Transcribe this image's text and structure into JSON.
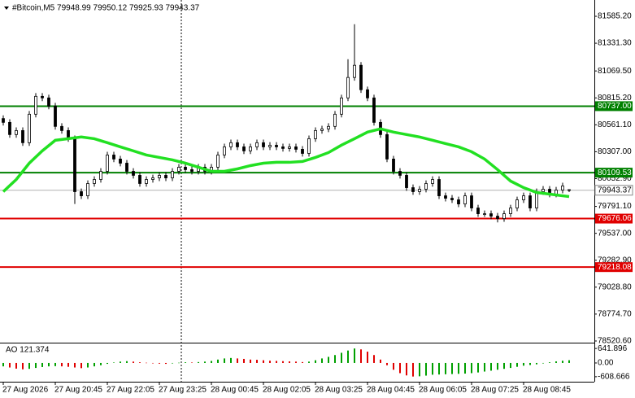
{
  "chart_data": [
    {
      "type": "candlestick",
      "title": "#Bitcoin,M5  79948.99 79950.12 79925.93 79943.37",
      "open": [
        80620,
        80584,
        80469,
        80507,
        80392,
        80661,
        80830,
        80815,
        80738,
        80546,
        80507,
        80430,
        79930,
        79891,
        80007,
        80045,
        80122,
        80276,
        80238,
        80199,
        80122,
        80084,
        80007,
        80045,
        80060,
        80084,
        80060,
        80122,
        80161,
        80138,
        80122,
        80161,
        80122,
        80161,
        80276,
        80353,
        80392,
        80353,
        80315,
        80353,
        80392,
        80353,
        80368,
        80353,
        80338,
        80353,
        80330,
        80291,
        80430,
        80507,
        80522,
        80546,
        80661,
        80815,
        81008,
        81123,
        80892,
        80815,
        80584,
        80469,
        80238,
        80122,
        80084,
        79968,
        79930,
        79953,
        80007,
        80045,
        79891,
        79868,
        79853,
        79814,
        79891,
        79776,
        79722,
        79722,
        79699,
        79676,
        79722,
        79776,
        79853,
        79891,
        79776,
        79930,
        79953,
        79907,
        79945,
        79948.99
      ],
      "high": [
        80650,
        80614,
        80537,
        80537,
        80691,
        80860,
        80860,
        80845,
        80768,
        80576,
        80537,
        80460,
        79960,
        80037,
        80075,
        80152,
        80306,
        80306,
        80268,
        80229,
        80152,
        80114,
        80075,
        80090,
        80114,
        80114,
        80152,
        80191,
        80191,
        80168,
        80191,
        80191,
        80191,
        80306,
        80383,
        80422,
        80422,
        80383,
        80383,
        80422,
        80422,
        80398,
        80398,
        80383,
        80383,
        80383,
        80360,
        80460,
        80537,
        80552,
        80576,
        80691,
        80845,
        81180,
        81510,
        81153,
        80922,
        80845,
        80614,
        80499,
        80268,
        80152,
        80114,
        79998,
        79983,
        80037,
        80075,
        80075,
        79921,
        79898,
        79883,
        79921,
        79921,
        79806,
        79752,
        79752,
        79729,
        79752,
        79806,
        79883,
        79921,
        79921,
        79960,
        79983,
        79983,
        79975,
        80014,
        79950.12
      ],
      "low": [
        80554,
        80439,
        80439,
        80362,
        80362,
        80631,
        80785,
        80708,
        80516,
        80477,
        80400,
        79814,
        79861,
        79861,
        79977,
        80015,
        80092,
        80208,
        80169,
        80092,
        80054,
        79977,
        79977,
        80015,
        80030,
        80030,
        80030,
        80092,
        80108,
        80092,
        80092,
        80092,
        80092,
        80131,
        80246,
        80323,
        80323,
        80285,
        80285,
        80323,
        80323,
        80323,
        80323,
        80308,
        80308,
        80300,
        80261,
        80261,
        80400,
        80477,
        80492,
        80516,
        80631,
        80785,
        80978,
        80862,
        80785,
        80554,
        80439,
        80208,
        80092,
        80054,
        79938,
        79900,
        79900,
        79923,
        79977,
        79861,
        79838,
        79823,
        79784,
        79784,
        79746,
        79692,
        79692,
        79669,
        79640,
        79646,
        79692,
        79746,
        79823,
        79746,
        79746,
        79900,
        79877,
        79877,
        79915,
        79925.93
      ],
      "close": [
        80584,
        80469,
        80507,
        80392,
        80661,
        80830,
        80815,
        80738,
        80546,
        80507,
        80430,
        79930,
        79891,
        80007,
        80045,
        80122,
        80276,
        80238,
        80199,
        80122,
        80084,
        80007,
        80045,
        80060,
        80084,
        80060,
        80122,
        80161,
        80138,
        80122,
        80161,
        80122,
        80161,
        80276,
        80353,
        80392,
        80353,
        80315,
        80353,
        80392,
        80353,
        80368,
        80353,
        80338,
        80353,
        80330,
        80291,
        80430,
        80507,
        80522,
        80546,
        80661,
        80815,
        81008,
        81123,
        80892,
        80815,
        80584,
        80469,
        80238,
        80122,
        80084,
        79968,
        79930,
        79953,
        80007,
        80045,
        79891,
        79868,
        79853,
        79814,
        79891,
        79776,
        79722,
        79722,
        79699,
        79676,
        79722,
        79776,
        79853,
        79891,
        79776,
        79930,
        79953,
        79907,
        79945,
        79984,
        79943.37
      ],
      "candle_color": "#000000",
      "up_fill": "#ffffff",
      "down_fill": "#000000",
      "moving_average": {
        "color": "#22e022",
        "x": [
          0,
          2,
          4,
          6,
          8,
          10,
          12,
          14,
          16,
          18,
          20,
          22,
          24,
          26,
          28,
          30,
          32,
          34,
          36,
          38,
          40,
          42,
          44,
          46,
          48,
          50,
          52,
          54,
          56,
          58,
          60,
          62,
          64,
          66,
          68,
          70,
          72,
          74,
          76,
          78,
          80,
          82,
          84,
          86,
          87
        ],
        "values": [
          79930,
          80045,
          80199,
          80315,
          80415,
          80430,
          80446,
          80430,
          80392,
          80353,
          80315,
          80276,
          80253,
          80230,
          80199,
          80161,
          80122,
          80122,
          80145,
          80176,
          80199,
          80207,
          80207,
          80215,
          80253,
          80299,
          80369,
          80430,
          80492,
          80523,
          80492,
          80469,
          80446,
          80415,
          80384,
          80353,
          80307,
          80238,
          80138,
          80030,
          79968,
          79922,
          79907,
          79891,
          79884
        ]
      },
      "levels": [
        {
          "value": 80737,
          "label": "80737.00",
          "color": "#008000"
        },
        {
          "value": 80109.53,
          "label": "80109.53",
          "color": "#008000"
        },
        {
          "value": 79676.06,
          "label": "79676.06",
          "color": "#e00000"
        },
        {
          "value": 79218.08,
          "label": "79218.08",
          "color": "#e00000"
        }
      ],
      "current_price": 79943.37,
      "ylim": [
        78505,
        81739
      ],
      "yticks": [
        {
          "value": 81585.2,
          "label": "81585.20"
        },
        {
          "value": 81331.3,
          "label": "81331.30"
        },
        {
          "value": 81069.5,
          "label": "81069.50"
        },
        {
          "value": 80815.2,
          "label": "80815.20"
        },
        {
          "value": 80561.1,
          "label": "80561.10"
        },
        {
          "value": 80307,
          "label": "80307.00"
        },
        {
          "value": 80052.9,
          "label": "80052.90"
        },
        {
          "value": 79791.1,
          "label": "79791.10"
        },
        {
          "value": 79537,
          "label": "79537.00"
        },
        {
          "value": 79282.9,
          "label": "79282.90"
        },
        {
          "value": 79028.8,
          "label": "79028.80"
        },
        {
          "value": 78774.7,
          "label": "78774.70"
        },
        {
          "value": 78520.6,
          "label": "78520.60"
        }
      ],
      "xticks": [
        {
          "value": 0,
          "label": "27 Aug 2026"
        },
        {
          "value": 8,
          "label": "27 Aug 20:45"
        },
        {
          "value": 16,
          "label": "27 Aug 22:05"
        },
        {
          "value": 24,
          "label": "27 Aug 23:25"
        },
        {
          "value": 32,
          "label": "28 Aug 00:45"
        },
        {
          "value": 40,
          "label": "28 Aug 02:05"
        },
        {
          "value": 48,
          "label": "28 Aug 03:25"
        },
        {
          "value": 56,
          "label": "28 Aug 04:45"
        },
        {
          "value": 64,
          "label": "28 Aug 06:05"
        },
        {
          "value": 72,
          "label": "28 Aug 07:25"
        },
        {
          "value": 80,
          "label": "28 Aug 08:45"
        }
      ]
    },
    {
      "type": "bar",
      "title": "AO 121.374",
      "values": [
        -150,
        -200,
        -250,
        -280,
        -260,
        -220,
        -180,
        -150,
        -140,
        -150,
        -170,
        -200,
        -230,
        -200,
        -150,
        -100,
        -40,
        20,
        60,
        80,
        60,
        30,
        10,
        -10,
        -30,
        -40,
        -20,
        10,
        30,
        20,
        40,
        60,
        90,
        150,
        200,
        220,
        200,
        180,
        150,
        140,
        120,
        100,
        90,
        80,
        70,
        60,
        40,
        60,
        120,
        200,
        270,
        350,
        450,
        550,
        640,
        600,
        500,
        350,
        150,
        -100,
        -300,
        -450,
        -550,
        -600,
        -590,
        -560,
        -520,
        -510,
        -500,
        -490,
        -480,
        -470,
        -450,
        -420,
        -380,
        -340,
        -300,
        -260,
        -220,
        -170,
        -120,
        -90,
        -60,
        -20,
        30,
        70,
        100,
        121.374
      ],
      "up_color": "#00a000",
      "down_color": "#e00000",
      "ylim": [
        -829,
        862
      ],
      "yticks": [
        641.896,
        {
          "value": 0,
          "label": "0.00"
        },
        -608.666
      ]
    }
  ]
}
